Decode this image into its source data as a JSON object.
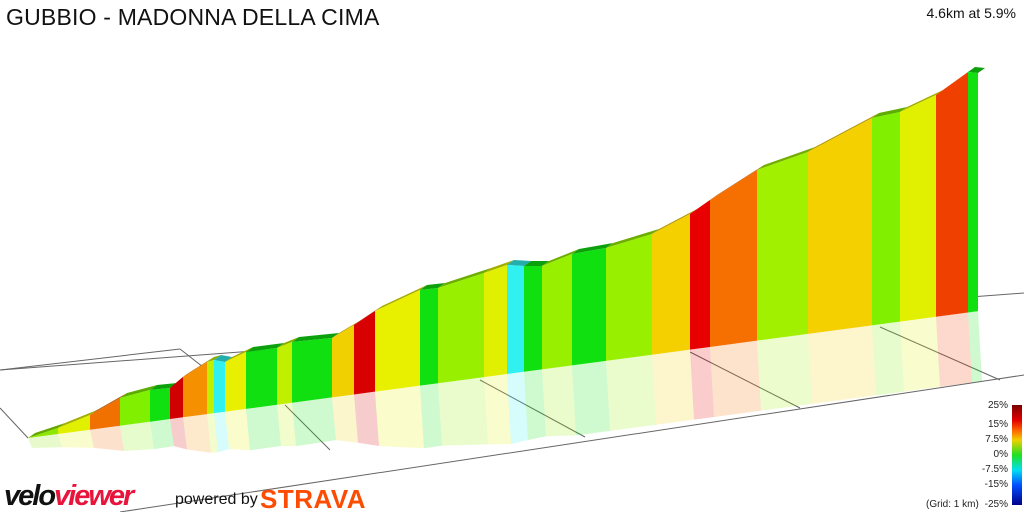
{
  "title": "GUBBIO - MADONNA DELLA CIMA",
  "summary": "4.6km at 5.9%",
  "legend": {
    "labels": [
      "25%",
      "15%",
      "7.5%",
      "0%",
      "-7.5%",
      "-15%",
      "-25%"
    ],
    "grid_note": "(Grid: 1 km)"
  },
  "branding": {
    "logo_part1": "velo",
    "logo_part2": "viewer",
    "powered_by": "powered by",
    "strava": "STRAVA"
  },
  "segment_colors": [
    "#8ce800",
    "#e0f000",
    "#f07000",
    "#80f000",
    "#10e010",
    "#d00000",
    "#f59000",
    "#c0f000",
    "#30f0f0",
    "#e8f000",
    "#10e010",
    "#c0f000",
    "#10e010",
    "#f0d000",
    "#d80000",
    "#e8f000",
    "#10e010",
    "#98f000",
    "#e0f000",
    "#30f0f0",
    "#10e010",
    "#98f000",
    "#10e010",
    "#98f000",
    "#f5d000",
    "#e80000",
    "#f57000",
    "#a0f000",
    "#f5d000",
    "#80f000",
    "#e0f000",
    "#f04000",
    "#10e010"
  ]
}
